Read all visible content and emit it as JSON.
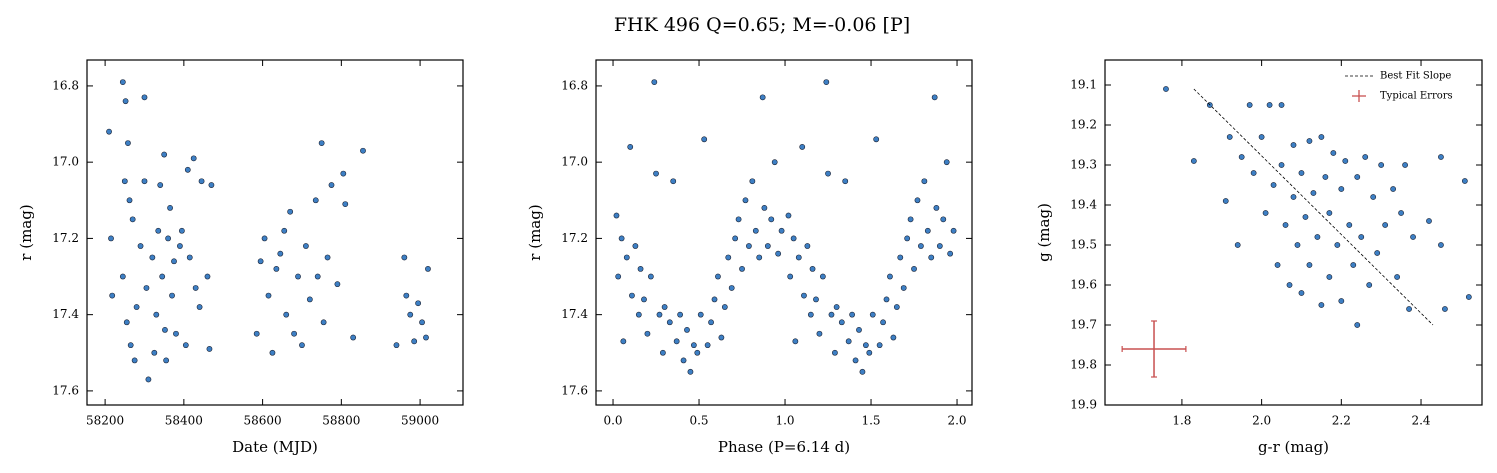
{
  "title": "FHK 496  Q=0.65; M=-0.06 [P]",
  "chart_data": [
    {
      "type": "scatter",
      "xlabel": "Date (MJD)",
      "ylabel": "r (mag)",
      "color": "#3d7fc4",
      "xlim": [
        58154,
        59109
      ],
      "ylim": [
        17.637,
        16.732
      ],
      "xticks": [
        58200,
        58400,
        58600,
        58800,
        59000
      ],
      "yticks": [
        16.8,
        {
          "value": 17.0,
          "label": "17.0"
        },
        17.2,
        17.4,
        17.6
      ],
      "x": [
        58210,
        58215,
        58218,
        58245,
        58252,
        58258,
        58250,
        58262,
        58270,
        58245,
        58255,
        58265,
        58275,
        58280,
        58290,
        58300,
        58300,
        58305,
        58310,
        58320,
        58325,
        58330,
        58335,
        58340,
        58345,
        58350,
        58352,
        58355,
        58360,
        58365,
        58370,
        58375,
        58380,
        58390,
        58395,
        58405,
        58410,
        58415,
        58425,
        58430,
        58440,
        58445,
        58460,
        58465,
        58470,
        58585,
        58595,
        58605,
        58615,
        58625,
        58635,
        58645,
        58655,
        58660,
        58670,
        58680,
        58690,
        58700,
        58710,
        58720,
        58735,
        58740,
        58750,
        58755,
        58765,
        58775,
        58790,
        58805,
        58810,
        58830,
        58855,
        58940,
        58960,
        58965,
        58975,
        58985,
        58995,
        59005,
        59015,
        59020
      ],
      "values": [
        16.92,
        17.2,
        17.35,
        16.79,
        16.84,
        16.95,
        17.05,
        17.1,
        17.15,
        17.3,
        17.42,
        17.48,
        17.52,
        17.38,
        17.22,
        16.83,
        17.05,
        17.33,
        17.57,
        17.25,
        17.5,
        17.4,
        17.18,
        17.06,
        17.3,
        16.98,
        17.44,
        17.52,
        17.2,
        17.12,
        17.35,
        17.26,
        17.45,
        17.22,
        17.18,
        17.48,
        17.02,
        17.25,
        16.99,
        17.33,
        17.38,
        17.05,
        17.3,
        17.49,
        17.06,
        17.45,
        17.26,
        17.2,
        17.35,
        17.5,
        17.28,
        17.24,
        17.18,
        17.4,
        17.13,
        17.45,
        17.3,
        17.48,
        17.22,
        17.36,
        17.1,
        17.3,
        16.95,
        17.42,
        17.25,
        17.06,
        17.32,
        17.03,
        17.11,
        17.46,
        16.97,
        17.48,
        17.25,
        17.35,
        17.4,
        17.47,
        17.37,
        17.42,
        17.46,
        17.28
      ]
    },
    {
      "type": "scatter",
      "xlabel": "Phase (P=6.14 d)",
      "ylabel": "r (mag)",
      "color": "#3d7fc4",
      "xlim": [
        -0.099,
        2.087
      ],
      "ylim": [
        17.637,
        16.732
      ],
      "xticks": [
        {
          "value": 0,
          "label": "0.0"
        },
        0.5,
        {
          "value": 1,
          "label": "1.0"
        },
        1.5,
        {
          "value": 2,
          "label": "2.0"
        }
      ],
      "yticks": [
        16.8,
        {
          "value": 17.0,
          "label": "17.0"
        },
        17.2,
        17.4,
        17.6
      ],
      "x": [
        0.02,
        0.03,
        0.05,
        0.06,
        0.08,
        0.1,
        0.11,
        0.13,
        0.15,
        0.16,
        0.18,
        0.2,
        0.22,
        0.24,
        0.25,
        0.27,
        0.29,
        0.3,
        0.33,
        0.35,
        0.37,
        0.39,
        0.41,
        0.43,
        0.45,
        0.47,
        0.49,
        0.51,
        0.53,
        0.55,
        0.57,
        0.59,
        0.61,
        0.63,
        0.65,
        0.67,
        0.69,
        0.71,
        0.73,
        0.75,
        0.77,
        0.79,
        0.81,
        0.83,
        0.85,
        0.87,
        0.88,
        0.9,
        0.92,
        0.94,
        0.96,
        0.98,
        1.02,
        1.03,
        1.05,
        1.06,
        1.08,
        1.1,
        1.11,
        1.13,
        1.15,
        1.16,
        1.18,
        1.2,
        1.22,
        1.24,
        1.25,
        1.27,
        1.29,
        1.3,
        1.33,
        1.35,
        1.37,
        1.39,
        1.41,
        1.43,
        1.45,
        1.47,
        1.49,
        1.51,
        1.53,
        1.55,
        1.57,
        1.59,
        1.61,
        1.63,
        1.65,
        1.67,
        1.69,
        1.71,
        1.73,
        1.75,
        1.77,
        1.79,
        1.81,
        1.83,
        1.85,
        1.87,
        1.88,
        1.9,
        1.92,
        1.94,
        1.96,
        1.98
      ],
      "values": [
        17.14,
        17.3,
        17.2,
        17.47,
        17.25,
        16.96,
        17.35,
        17.22,
        17.4,
        17.28,
        17.36,
        17.45,
        17.3,
        16.79,
        17.03,
        17.4,
        17.5,
        17.38,
        17.42,
        17.05,
        17.47,
        17.4,
        17.52,
        17.44,
        17.55,
        17.48,
        17.5,
        17.4,
        16.94,
        17.48,
        17.42,
        17.36,
        17.3,
        17.46,
        17.38,
        17.25,
        17.33,
        17.2,
        17.15,
        17.28,
        17.1,
        17.22,
        17.05,
        17.18,
        17.25,
        16.83,
        17.12,
        17.22,
        17.15,
        17.0,
        17.24,
        17.18,
        17.14,
        17.3,
        17.2,
        17.47,
        17.25,
        16.96,
        17.35,
        17.22,
        17.4,
        17.28,
        17.36,
        17.45,
        17.3,
        16.79,
        17.03,
        17.4,
        17.5,
        17.38,
        17.42,
        17.05,
        17.47,
        17.4,
        17.52,
        17.44,
        17.55,
        17.48,
        17.5,
        17.4,
        16.94,
        17.48,
        17.42,
        17.36,
        17.3,
        17.46,
        17.38,
        17.25,
        17.33,
        17.2,
        17.15,
        17.28,
        17.1,
        17.22,
        17.05,
        17.18,
        17.25,
        16.83,
        17.12,
        17.22,
        17.15,
        17.0,
        17.24,
        17.18
      ]
    },
    {
      "type": "scatter",
      "xlabel": "g-r (mag)",
      "ylabel": "g (mag)",
      "color": "#3d7fc4",
      "xlim": [
        1.607,
        2.553
      ],
      "ylim": [
        19.9,
        19.0375
      ],
      "xticks": [
        1.8,
        {
          "value": 2,
          "label": "2.0"
        },
        2.2,
        2.4
      ],
      "yticks": [
        19.1,
        19.2,
        19.3,
        19.4,
        19.5,
        19.6,
        19.7,
        19.8,
        19.9
      ],
      "x": [
        1.76,
        1.83,
        1.87,
        1.91,
        1.92,
        1.94,
        1.95,
        1.97,
        1.98,
        2.0,
        2.01,
        2.02,
        2.03,
        2.04,
        2.05,
        2.05,
        2.06,
        2.07,
        2.08,
        2.08,
        2.09,
        2.1,
        2.1,
        2.11,
        2.12,
        2.12,
        2.13,
        2.14,
        2.15,
        2.15,
        2.16,
        2.17,
        2.17,
        2.18,
        2.19,
        2.2,
        2.2,
        2.21,
        2.22,
        2.23,
        2.24,
        2.24,
        2.25,
        2.26,
        2.27,
        2.28,
        2.29,
        2.3,
        2.31,
        2.33,
        2.34,
        2.35,
        2.36,
        2.37,
        2.38,
        2.42,
        2.45,
        2.45,
        2.46,
        2.51,
        2.52
      ],
      "values": [
        19.11,
        19.29,
        19.15,
        19.39,
        19.23,
        19.5,
        19.28,
        19.15,
        19.32,
        19.23,
        19.42,
        19.15,
        19.35,
        19.55,
        19.15,
        19.3,
        19.45,
        19.6,
        19.25,
        19.38,
        19.5,
        19.32,
        19.62,
        19.43,
        19.24,
        19.55,
        19.37,
        19.48,
        19.23,
        19.65,
        19.33,
        19.42,
        19.58,
        19.27,
        19.5,
        19.36,
        19.64,
        19.29,
        19.45,
        19.55,
        19.7,
        19.33,
        19.48,
        19.28,
        19.6,
        19.38,
        19.52,
        19.3,
        19.45,
        19.36,
        19.58,
        19.42,
        19.3,
        19.66,
        19.48,
        19.44,
        19.28,
        19.5,
        19.66,
        19.34,
        19.63
      ],
      "fit_line": {
        "name": "Best Fit Slope",
        "color": "#000000",
        "x": [
          1.83,
          2.43
        ],
        "values": [
          19.11,
          19.7
        ]
      },
      "typical_errors": {
        "name": "Typical Errors",
        "color": "#c85050",
        "x": [
          1.73
        ],
        "values": [
          19.76
        ],
        "xerr": [
          0.08
        ],
        "yerr": [
          0.07
        ]
      }
    }
  ]
}
